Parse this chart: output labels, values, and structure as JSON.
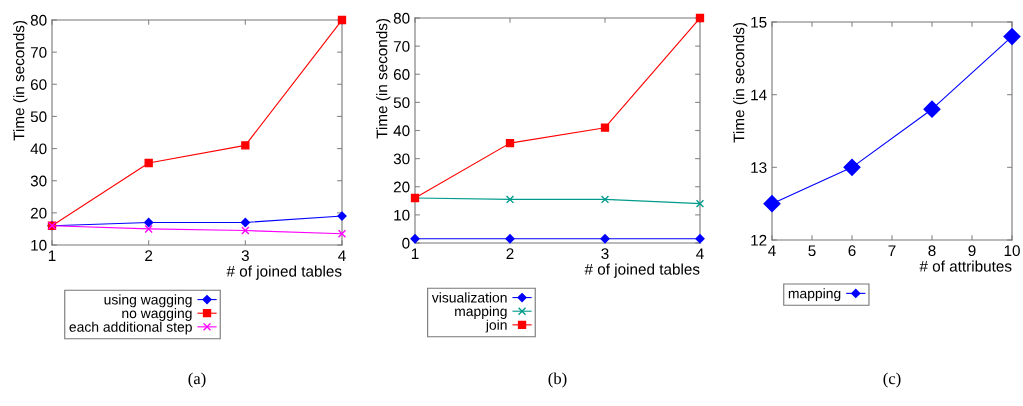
{
  "chart_data": [
    {
      "type": "line",
      "xlabel": "# of joined tables",
      "ylabel": "Time (in seconds)",
      "x": [
        1,
        2,
        3,
        4
      ],
      "xlim": [
        1,
        4
      ],
      "xticks": [
        1,
        2,
        3,
        4
      ],
      "ylim": [
        10,
        80
      ],
      "yticks": [
        10,
        20,
        30,
        40,
        50,
        60,
        70,
        80
      ],
      "grid": false,
      "legend": "bottom",
      "annotations": [
        "(a)"
      ],
      "series": [
        {
          "name": "using wagging",
          "color": "#0000ff",
          "marker": "diamond",
          "values": [
            16,
            17,
            17,
            19
          ]
        },
        {
          "name": "no wagging",
          "color": "#ff0000",
          "marker": "square",
          "values": [
            16,
            35.5,
            41,
            80
          ]
        },
        {
          "name": "each additional step",
          "color": "#ff00ff",
          "marker": "cross",
          "values": [
            16,
            15,
            14.5,
            13.5
          ]
        }
      ]
    },
    {
      "type": "line",
      "xlabel": "# of joined tables",
      "ylabel": "Time (in seconds)",
      "x": [
        1,
        2,
        3,
        4
      ],
      "xlim": [
        1,
        4
      ],
      "xticks": [
        1,
        2,
        3,
        4
      ],
      "ylim": [
        0,
        80
      ],
      "yticks": [
        0,
        10,
        20,
        30,
        40,
        50,
        60,
        70,
        80
      ],
      "grid": false,
      "legend": "bottom",
      "annotations": [
        "(b)"
      ],
      "series": [
        {
          "name": "visualization",
          "color": "#0000ff",
          "marker": "diamond",
          "values": [
            1.5,
            1.5,
            1.5,
            1.5
          ]
        },
        {
          "name": "mapping",
          "color": "#009b8c",
          "marker": "cross",
          "values": [
            16,
            15.5,
            15.5,
            14
          ]
        },
        {
          "name": "join",
          "color": "#ff0000",
          "marker": "square",
          "values": [
            16,
            35.5,
            41,
            80
          ]
        }
      ]
    },
    {
      "type": "line",
      "xlabel": "# of attributes",
      "ylabel": "Time (in seconds)",
      "x": [
        4,
        6,
        8,
        10
      ],
      "xlim": [
        4,
        10
      ],
      "xticks": [
        4,
        5,
        6,
        7,
        8,
        9,
        10
      ],
      "ylim": [
        12,
        15
      ],
      "yticks": [
        12,
        13,
        14,
        15
      ],
      "grid": false,
      "legend": "bottom",
      "annotations": [
        "(c)"
      ],
      "series": [
        {
          "name": "mapping",
          "color": "#0000ff",
          "marker": "diamond",
          "values": [
            12.5,
            13,
            13.8,
            14.8
          ]
        }
      ]
    }
  ]
}
